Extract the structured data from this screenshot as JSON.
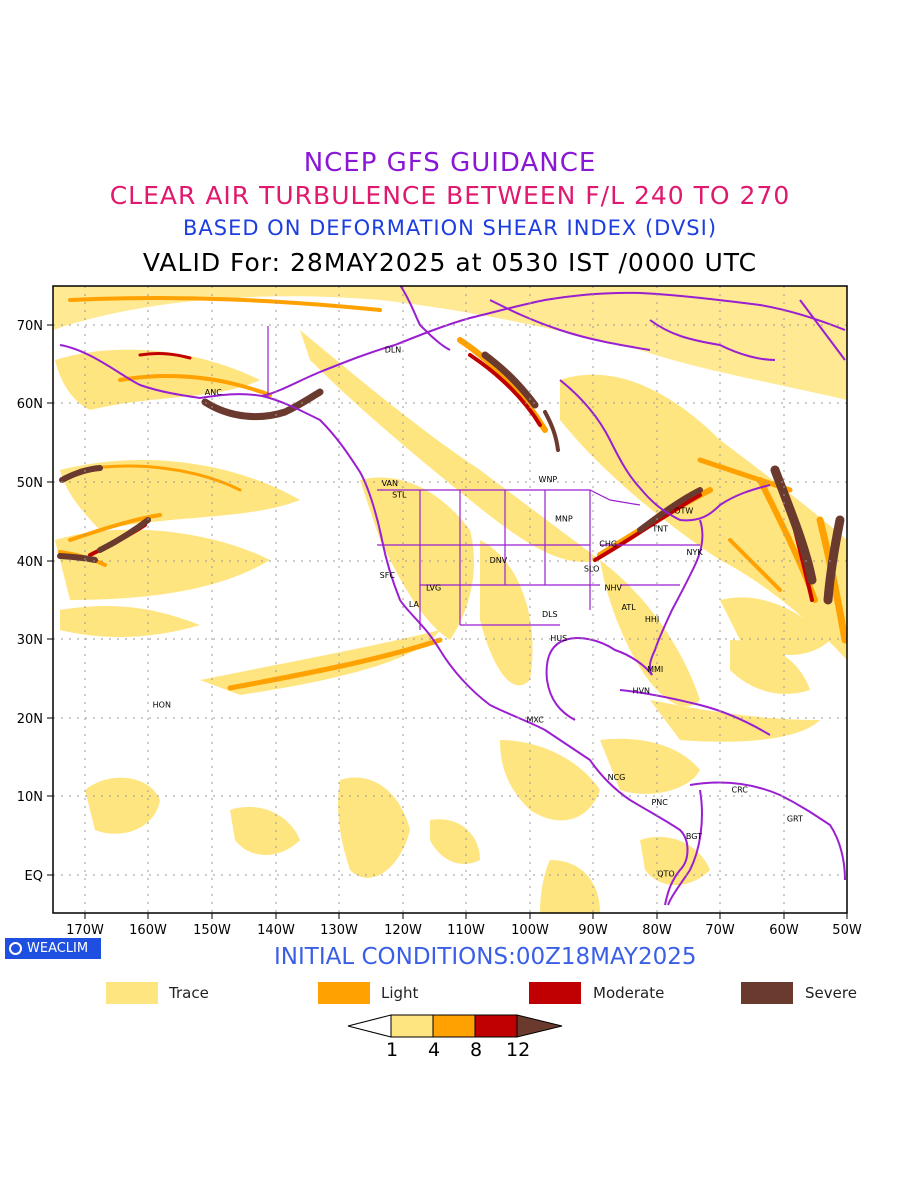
{
  "header": {
    "line1": "NCEP GFS GUIDANCE",
    "line2": "CLEAR AIR TURBULENCE BETWEEN F/L 240 TO 270",
    "line3": "BASED ON DEFORMATION SHEAR INDEX (DVSI)",
    "line4": "VALID For: 28MAY2025 at 0530 IST /0000 UTC"
  },
  "colors": {
    "line1": "#8a16d6",
    "line2": "#e0196e",
    "line3": "#1c3de0",
    "line4": "#000000",
    "coast": "#9a1fd1",
    "trace": "#ffe580",
    "light": "#ffa100",
    "moderate": "#c00000",
    "severe": "#6b3a2e",
    "badge": "#1f4fe0",
    "initial": "#3a5fe6"
  },
  "map": {
    "lon_ticks": [
      "170W",
      "160W",
      "150W",
      "140W",
      "130W",
      "120W",
      "110W",
      "100W",
      "90W",
      "80W",
      "70W",
      "60W",
      "50W"
    ],
    "lat_ticks": [
      "70N",
      "60N",
      "50N",
      "40N",
      "30N",
      "20N",
      "10N",
      "EQ"
    ],
    "stations": [
      {
        "code": "DLN",
        "lon": -121.5,
        "lat": 66.5
      },
      {
        "code": "ANC",
        "lon": -149.8,
        "lat": 61.1
      },
      {
        "code": "VAN",
        "lon": -122.0,
        "lat": 49.5
      },
      {
        "code": "STL",
        "lon": -120.5,
        "lat": 48.0
      },
      {
        "code": "WNP",
        "lon": -97.1,
        "lat": 50.0
      },
      {
        "code": "MNP",
        "lon": -94.6,
        "lat": 45.0
      },
      {
        "code": "OTW",
        "lon": -75.7,
        "lat": 46.0
      },
      {
        "code": "TNT",
        "lon": -79.4,
        "lat": 43.7
      },
      {
        "code": "CHG",
        "lon": -87.6,
        "lat": 41.8
      },
      {
        "code": "NYK",
        "lon": -74.0,
        "lat": 40.7
      },
      {
        "code": "DNV",
        "lon": -104.9,
        "lat": 39.7
      },
      {
        "code": "SLO",
        "lon": -90.2,
        "lat": 38.6
      },
      {
        "code": "SFC",
        "lon": -122.4,
        "lat": 37.8
      },
      {
        "code": "LVG",
        "lon": -115.1,
        "lat": 36.2
      },
      {
        "code": "NHV",
        "lon": -86.8,
        "lat": 36.2
      },
      {
        "code": "LA",
        "lon": -118.2,
        "lat": 34.1
      },
      {
        "code": "ATL",
        "lon": -84.4,
        "lat": 33.7
      },
      {
        "code": "DLS",
        "lon": -96.8,
        "lat": 32.8
      },
      {
        "code": "HHI",
        "lon": -80.7,
        "lat": 32.2
      },
      {
        "code": "HUS",
        "lon": -95.4,
        "lat": 29.8
      },
      {
        "code": "MMI",
        "lon": -80.2,
        "lat": 25.8
      },
      {
        "code": "HVN",
        "lon": -82.4,
        "lat": 23.1
      },
      {
        "code": "HON",
        "lon": -157.9,
        "lat": 21.3
      },
      {
        "code": "MXC",
        "lon": -99.1,
        "lat": 19.4
      },
      {
        "code": "NCG",
        "lon": -86.3,
        "lat": 12.1
      },
      {
        "code": "CRC",
        "lon": -66.9,
        "lat": 10.5
      },
      {
        "code": "PNC",
        "lon": -79.5,
        "lat": 8.9
      },
      {
        "code": "GRT",
        "lon": -58.2,
        "lat": 6.8
      },
      {
        "code": "BGT",
        "lon": -74.1,
        "lat": 4.6
      },
      {
        "code": "QTO",
        "lon": -78.5,
        "lat": -0.2
      }
    ]
  },
  "footer": {
    "badge": "WEACLIM",
    "initial_conditions": "INITIAL CONDITIONS:00Z18MAY2025"
  },
  "legend": [
    {
      "label": "Trace",
      "color": "#ffe580"
    },
    {
      "label": "Light",
      "color": "#ffa100"
    },
    {
      "label": "Moderate",
      "color": "#c00000"
    },
    {
      "label": "Severe",
      "color": "#6b3a2e"
    }
  ],
  "colorbar": {
    "levels": [
      "1",
      "4",
      "8",
      "12"
    ],
    "colors": [
      "#ffffff",
      "#ffe580",
      "#ffa100",
      "#c00000",
      "#6b3a2e"
    ]
  }
}
